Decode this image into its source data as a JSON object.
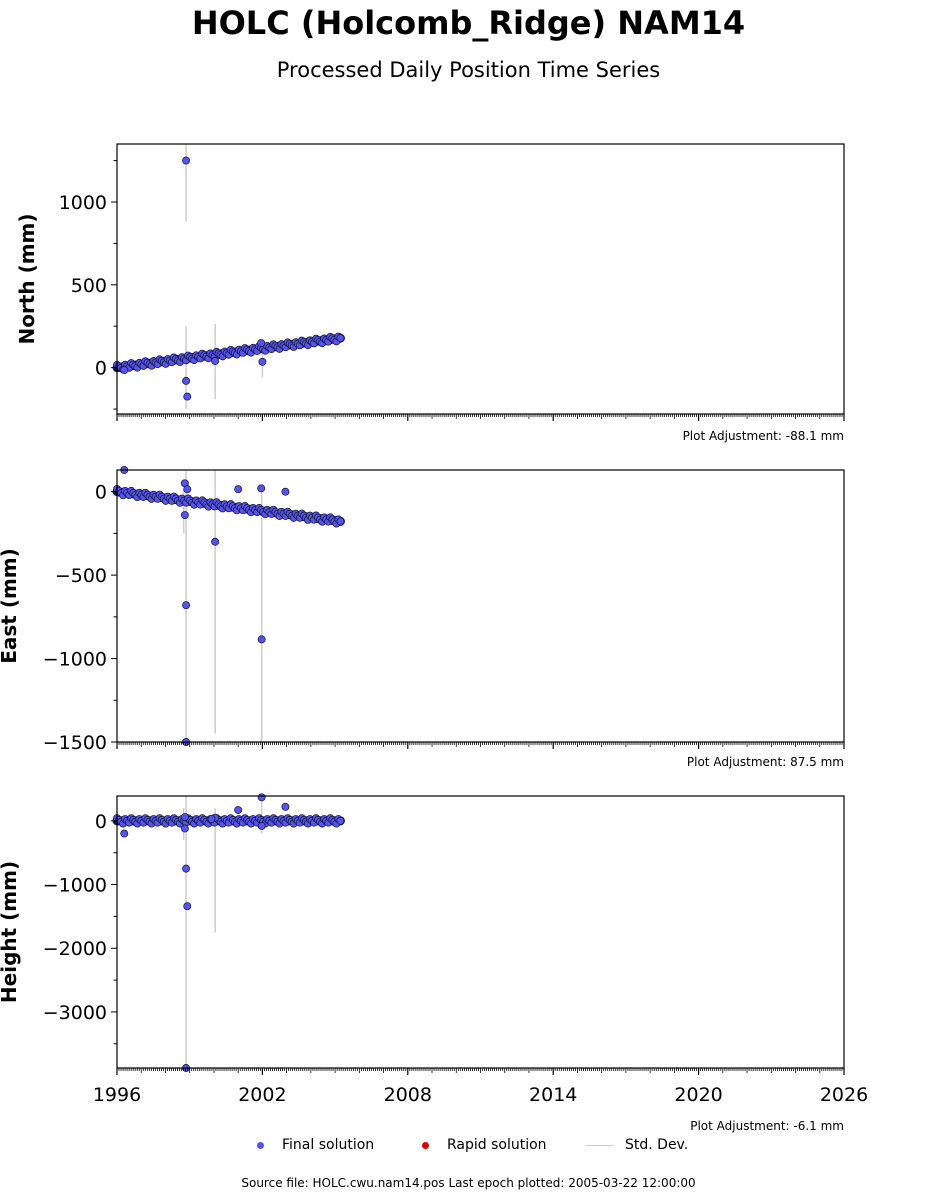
{
  "header": {
    "title": "HOLC (Holcomb_Ridge) NAM14",
    "subtitle": "Processed Daily Position Time Series"
  },
  "legend": {
    "final_label": "Final solution",
    "rapid_label": "Rapid solution",
    "std_label": "Std. Dev.",
    "colors": {
      "final": "#5555ee",
      "rapid": "#dd0000",
      "std": "#cccccc"
    }
  },
  "footer": {
    "text": "Source file: HOLC.cwu.nam14.pos  Last epoch plotted: 2005-03-22 12:00:00"
  },
  "chart_data": [
    {
      "type": "scatter",
      "ylabel": "North (mm)",
      "adjustment": "Plot Adjustment: -88.1 mm",
      "xlim": [
        1996,
        2026
      ],
      "ylim": [
        -280,
        1350
      ],
      "yticks": [
        0,
        500,
        1000
      ],
      "ytick_labels": [
        "0",
        "500",
        "1000"
      ],
      "trend": {
        "start": [
          1996.0,
          0
        ],
        "end": [
          2005.22,
          178
        ]
      },
      "outliers": [
        [
          1998.85,
          1250
        ],
        [
          1998.85,
          -80
        ],
        [
          1998.9,
          -175
        ],
        [
          2000.05,
          40
        ],
        [
          2002.0,
          35
        ],
        [
          2001.95,
          148
        ],
        [
          1996.3,
          -15
        ]
      ],
      "std_bars": [
        [
          1998.85,
          880,
          1380
        ],
        [
          1998.85,
          -250,
          250
        ],
        [
          2000.05,
          -190,
          265
        ],
        [
          2002.0,
          -60,
          110
        ]
      ]
    },
    {
      "type": "scatter",
      "ylabel": "East (mm)",
      "adjustment": "Plot Adjustment: 87.5 mm",
      "xlim": [
        1996,
        2026
      ],
      "ylim": [
        -1500,
        130
      ],
      "yticks": [
        -1500,
        -1000,
        -500,
        0
      ],
      "ytick_labels": [
        "−1500",
        "−1000",
        "−500",
        "0"
      ],
      "trend": {
        "start": [
          1996.0,
          0
        ],
        "end": [
          2005.22,
          -178
        ]
      },
      "outliers": [
        [
          1996.3,
          130
        ],
        [
          1998.8,
          50
        ],
        [
          1998.9,
          15
        ],
        [
          1998.8,
          -140
        ],
        [
          1998.85,
          -680
        ],
        [
          1998.85,
          -1500
        ],
        [
          2000.05,
          -300
        ],
        [
          2001.0,
          15
        ],
        [
          2001.95,
          20
        ],
        [
          2001.97,
          -885
        ],
        [
          2002.95,
          0
        ]
      ],
      "std_bars": [
        [
          1998.85,
          -1500,
          130
        ],
        [
          2000.05,
          -1450,
          130
        ],
        [
          2001.97,
          -1500,
          0
        ],
        [
          1998.75,
          -250,
          10
        ]
      ]
    },
    {
      "type": "scatter",
      "ylabel": "Height (mm)",
      "adjustment": "Plot Adjustment: -6.1 mm",
      "xlim": [
        1996,
        2026
      ],
      "xticks": [
        1996,
        2002,
        2008,
        2014,
        2020,
        2026
      ],
      "xtick_labels": [
        "1996",
        "2002",
        "2008",
        "2014",
        "2020",
        "2026"
      ],
      "ylim": [
        -3880,
        390
      ],
      "yticks": [
        -3000,
        -2000,
        -1000,
        0
      ],
      "ytick_labels": [
        "−3000",
        "−2000",
        "−1000",
        "0"
      ],
      "trend": {
        "start": [
          1996.0,
          0
        ],
        "end": [
          2005.22,
          0
        ]
      },
      "outliers": [
        [
          1996.3,
          -200
        ],
        [
          1998.8,
          -120
        ],
        [
          1998.8,
          60
        ],
        [
          1998.85,
          -750
        ],
        [
          1998.9,
          -1340
        ],
        [
          1998.85,
          -3880
        ],
        [
          2000.05,
          50
        ],
        [
          2001.0,
          170
        ],
        [
          1999.9,
          30
        ],
        [
          2001.97,
          370
        ],
        [
          2002.95,
          220
        ],
        [
          2001.97,
          -80
        ]
      ],
      "std_bars": [
        [
          1998.85,
          -3880,
          390
        ],
        [
          1998.75,
          -300,
          200
        ],
        [
          2000.05,
          -1750,
          200
        ],
        [
          2001.97,
          -200,
          390
        ]
      ]
    }
  ]
}
